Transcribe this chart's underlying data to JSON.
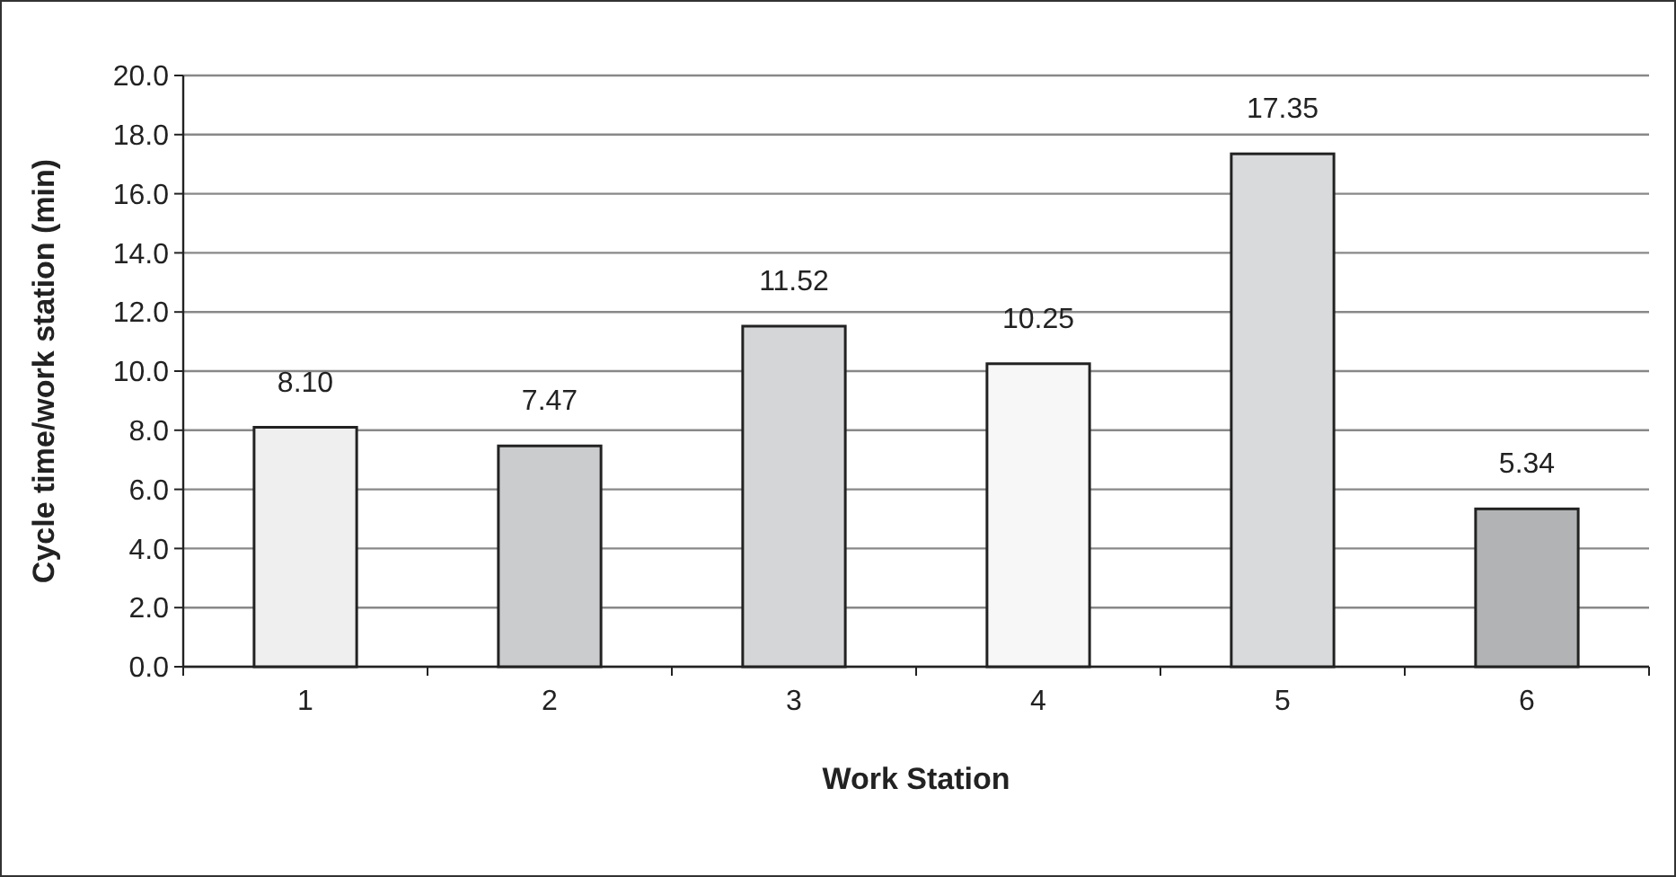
{
  "chart_data": {
    "type": "bar",
    "xlabel": "Work Station",
    "ylabel": "Cycle time/work station (min)",
    "categories": [
      "1",
      "2",
      "3",
      "4",
      "5",
      "6"
    ],
    "values": [
      8.1,
      7.47,
      11.52,
      10.25,
      17.35,
      5.34
    ],
    "value_labels": [
      "8.10",
      "7.47",
      "11.52",
      "10.25",
      "17.35",
      "5.34"
    ],
    "colors": [
      "#eeefee",
      "#cbcccd",
      "#d5d6d7",
      "#f7f7f7",
      "#d9dadb",
      "#b2b3b5"
    ],
    "ylim": [
      0,
      20
    ],
    "yticks": [
      {
        "value": 0,
        "label": "0.0"
      },
      {
        "value": 2,
        "label": "2.0"
      },
      {
        "value": 4,
        "label": "4.0"
      },
      {
        "value": 6,
        "label": "6.0"
      },
      {
        "value": 8,
        "label": "8.0"
      },
      {
        "value": 10,
        "label": "10.0"
      },
      {
        "value": 12,
        "label": "12.0"
      },
      {
        "value": 14,
        "label": "14.0"
      },
      {
        "value": 16,
        "label": "16.0"
      },
      {
        "value": 18,
        "label": "18.0"
      },
      {
        "value": 20,
        "label": "20.0"
      }
    ],
    "grid": "y"
  }
}
